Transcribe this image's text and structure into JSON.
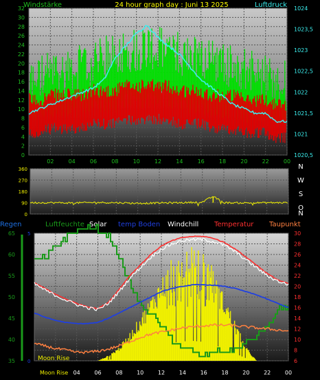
{
  "panel1": {
    "left_label": "Windstärke",
    "title": "24 hour graph day : Juni 13 2025",
    "right_label": "Luftdruck",
    "left_ticks": [
      "0",
      "2",
      "4",
      "6",
      "8",
      "10",
      "12",
      "14",
      "16",
      "18",
      "20",
      "22",
      "24",
      "26",
      "28",
      "30",
      "32"
    ],
    "right_ticks": [
      "1020,5",
      "1021",
      "1021,5",
      "1022",
      "1022,5",
      "1023",
      "1023,5",
      "1024"
    ],
    "hour_ticks": [
      "02",
      "04",
      "06",
      "08",
      "10",
      "12",
      "14",
      "16",
      "18",
      "20",
      "22",
      "00"
    ]
  },
  "panel2": {
    "ticks": [
      "0",
      "90",
      "180",
      "270",
      "360"
    ],
    "compass": [
      "N",
      "W",
      "S",
      "O",
      "N"
    ]
  },
  "panel3": {
    "legend": [
      {
        "label": "Regen",
        "color": "#1e6fe0"
      },
      {
        "label": "Luftfeuchte",
        "color": "#1a9a1a"
      },
      {
        "label": "Solar",
        "color": "#ffffff"
      },
      {
        "label": "temp Boden",
        "color": "#2040e0"
      },
      {
        "label": "Windchill",
        "color": "#ffffff"
      },
      {
        "label": "Temperatur",
        "color": "#ff3030"
      },
      {
        "label": "Taupunkt",
        "color": "#ff8040"
      }
    ],
    "left_ticks": [
      "35",
      "40",
      "45",
      "50",
      "55",
      "60",
      "65"
    ],
    "inner_ticks": [
      "0",
      "5"
    ],
    "right_ticks": [
      "6",
      "8",
      "10",
      "12",
      "14",
      "16",
      "18",
      "20",
      "22",
      "24",
      "26",
      "28",
      "30"
    ],
    "hour_ticks": [
      "Moon Rise",
      "04",
      "06",
      "08",
      "10",
      "12",
      "14",
      "16",
      "18",
      "20",
      "22",
      "00"
    ],
    "moon_label": "Moon Rise"
  },
  "chart_data": [
    {
      "type": "line",
      "title": "24 hour graph day : Juni 13 2025",
      "x": [
        0,
        1,
        2,
        3,
        4,
        5,
        6,
        7,
        8,
        9,
        10,
        11,
        12,
        13,
        14,
        15,
        16,
        17,
        18,
        19,
        20,
        21,
        22,
        23,
        24
      ],
      "series": [
        {
          "name": "Windstärke",
          "axis": "left",
          "color": "#00e000",
          "values": [
            14,
            15,
            16,
            16,
            17,
            17,
            18,
            19,
            20,
            21,
            21,
            22,
            21,
            21,
            20,
            20,
            19,
            19,
            18,
            17,
            17,
            16,
            15,
            14,
            14
          ]
        },
        {
          "name": "Windstärke",
          "axis": "left",
          "color": "#e00000",
          "values": [
            9,
            9,
            10,
            10,
            10,
            10,
            11,
            11,
            11,
            12,
            12,
            12,
            12,
            12,
            11,
            11,
            11,
            10,
            10,
            10,
            9,
            9,
            9,
            8,
            8
          ]
        },
        {
          "name": "Luftdruck",
          "axis": "right",
          "color": "#3cf0f0",
          "values": [
            1021.5,
            1021.6,
            1021.7,
            1021.8,
            1021.9,
            1022.0,
            1022.1,
            1022.3,
            1022.8,
            1023.1,
            1023.4,
            1023.6,
            1023.3,
            1023.1,
            1022.9,
            1022.6,
            1022.3,
            1022.1,
            1021.9,
            1021.7,
            1021.6,
            1021.5,
            1021.5,
            1021.3,
            1021.3
          ]
        }
      ],
      "ylim_left": [
        0,
        32
      ],
      "ylim_right": [
        1020.5,
        1024
      ]
    },
    {
      "type": "line",
      "x": [
        0,
        2,
        4,
        6,
        8,
        10,
        12,
        14,
        16,
        17,
        18,
        20,
        22,
        24
      ],
      "series": [
        {
          "color": "#f0f000",
          "values": [
            90,
            90,
            88,
            92,
            90,
            85,
            88,
            90,
            95,
            140,
            90,
            88,
            90,
            90
          ]
        }
      ],
      "ylim": [
        0,
        360
      ]
    },
    {
      "type": "line",
      "x": [
        0,
        1,
        2,
        3,
        4,
        5,
        6,
        7,
        8,
        9,
        10,
        11,
        12,
        13,
        14,
        15,
        16,
        17,
        18,
        19,
        20,
        21,
        22,
        23,
        24
      ],
      "series": [
        {
          "name": "Luftfeuchte",
          "axis": "left",
          "color": "#1a9a1a",
          "values": [
            59,
            59,
            62,
            64,
            66,
            66,
            66,
            64,
            59,
            53,
            48,
            46,
            43,
            40,
            38,
            37,
            36,
            37,
            37,
            38,
            39,
            41,
            43,
            47,
            48
          ]
        },
        {
          "name": "Solar",
          "axis": "inner",
          "color": "#f0f000",
          "values": [
            0,
            0,
            0,
            0,
            0,
            0,
            0,
            0.2,
            0.5,
            1.0,
            1.6,
            2.3,
            3.0,
            3.5,
            3.8,
            3.9,
            3.7,
            3.1,
            2.3,
            1.4,
            0.5,
            0,
            0,
            0,
            0
          ]
        },
        {
          "name": "temp Boden",
          "axis": "right",
          "color": "#2040e0",
          "values": [
            15.0,
            14.2,
            13.6,
            13.2,
            13.0,
            13.0,
            13.2,
            14.0,
            15.0,
            16.0,
            17.0,
            18.0,
            19.0,
            19.6,
            20.0,
            20.3,
            20.3,
            20.2,
            20.0,
            19.6,
            19.0,
            18.4,
            17.6,
            16.8,
            16.0
          ]
        },
        {
          "name": "Windchill",
          "axis": "right",
          "color": "#ffffff",
          "values": [
            20.5,
            19.3,
            18.3,
            17.4,
            16.6,
            16.0,
            15.6,
            16.8,
            19.0,
            21.5,
            23.5,
            25.5,
            27.0,
            28.0,
            28.6,
            28.8,
            28.8,
            28.4,
            27.7,
            26.5,
            25.0,
            23.5,
            22.0,
            21.0,
            20.3
          ]
        },
        {
          "name": "Temperatur",
          "axis": "right",
          "color": "#ff3030",
          "values": [
            20.7,
            19.6,
            18.5,
            17.6,
            16.8,
            16.2,
            15.8,
            17.0,
            19.4,
            22.0,
            24.0,
            26.0,
            27.6,
            28.6,
            29.2,
            29.4,
            29.4,
            29.0,
            28.2,
            27.0,
            25.5,
            24.0,
            22.4,
            21.2,
            20.5
          ]
        },
        {
          "name": "Taupunkt",
          "axis": "right",
          "color": "#ff8040",
          "values": [
            9.2,
            8.8,
            8.3,
            8.0,
            7.6,
            7.6,
            7.8,
            8.2,
            8.8,
            9.6,
            10.4,
            11.0,
            11.4,
            11.8,
            12.2,
            12.4,
            12.6,
            12.7,
            12.7,
            12.6,
            12.4,
            12.2,
            12.0,
            11.8,
            11.6
          ]
        }
      ],
      "ylim_left": [
        35,
        65
      ],
      "ylim_right": [
        6,
        30
      ]
    }
  ]
}
